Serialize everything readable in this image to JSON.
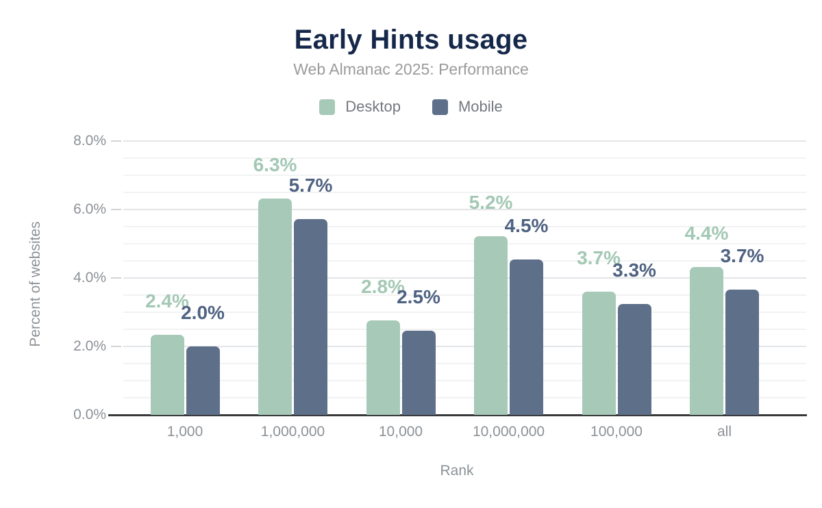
{
  "header": {
    "title": "Early Hints usage",
    "subtitle": "Web Almanac 2025: Performance"
  },
  "legend": [
    {
      "label": "Desktop",
      "color": "#a7c9b8"
    },
    {
      "label": "Mobile",
      "color": "#5e7089"
    }
  ],
  "colors": {
    "title_text": "#16284a",
    "subtitle_text": "#9b9b9b",
    "legend_text": "#73787e",
    "axis_text": "#8c9196",
    "desktop_bar": "#a7c9b8",
    "mobile_bar": "#5e7089",
    "desktop_label": "#a3c8b4",
    "mobile_label": "#4f6282",
    "major_gridline": "#e3e5e8",
    "minor_gridline": "#f1f2f3",
    "baseline": "#37383a"
  },
  "chart_data": {
    "type": "bar",
    "title": "Early Hints usage",
    "subtitle": "Web Almanac 2025: Performance",
    "xlabel": "Rank",
    "ylabel": "Percent of websites",
    "categories": [
      "1,000",
      "1,000,000",
      "10,000",
      "10,000,000",
      "100,000",
      "all"
    ],
    "series": [
      {
        "name": "Desktop",
        "values": [
          2.4,
          6.3,
          2.8,
          5.2,
          3.7,
          4.4
        ],
        "labels": [
          "2.4%",
          "6.3%",
          "2.8%",
          "5.2%",
          "3.7%",
          "4.4%"
        ],
        "bar_heights_pct": [
          2.35,
          6.32,
          2.76,
          5.22,
          3.6,
          4.32
        ]
      },
      {
        "name": "Mobile",
        "values": [
          2.0,
          5.7,
          2.5,
          4.5,
          3.3,
          3.7
        ],
        "labels": [
          "2.0%",
          "5.7%",
          "2.5%",
          "4.5%",
          "3.3%",
          "3.7%"
        ],
        "bar_heights_pct": [
          2.0,
          5.72,
          2.46,
          4.54,
          3.24,
          3.66
        ]
      }
    ],
    "y_axis": {
      "min": 0,
      "max": 8,
      "major_tick_step": 2,
      "minor_grid_step": 0.5,
      "tick_labels": [
        "0.0%",
        "2.0%",
        "4.0%",
        "6.0%",
        "8.0%"
      ]
    },
    "legend_position": "top",
    "grid": true
  }
}
